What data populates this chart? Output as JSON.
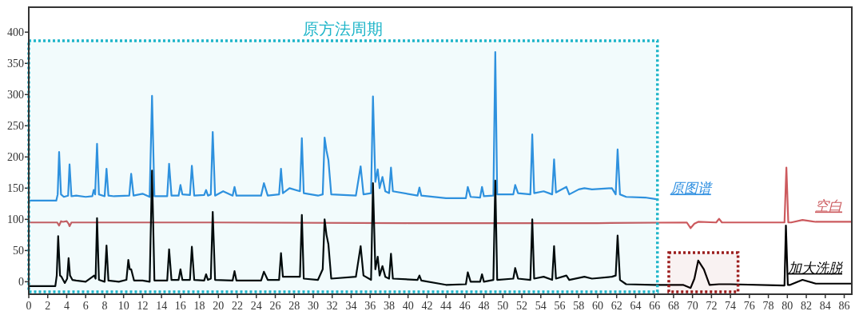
{
  "chart_data": {
    "type": "line",
    "xlim": [
      0,
      86.8
    ],
    "ylim": [
      -20,
      440
    ],
    "xticks": [
      0,
      2,
      4,
      6,
      8,
      10,
      12,
      14,
      16,
      18,
      20,
      22,
      24,
      26,
      28,
      30,
      32,
      34,
      36,
      38,
      40,
      42,
      44,
      46,
      48,
      50,
      52,
      54,
      56,
      58,
      60,
      62,
      64,
      66,
      68,
      70,
      72,
      74,
      76,
      78,
      80,
      82,
      84,
      86
    ],
    "yticks": [
      0,
      50,
      100,
      150,
      200,
      250,
      300,
      350,
      400
    ],
    "grid": false,
    "marker": "none",
    "line_style": "solid",
    "bands": [
      {
        "axis": "x",
        "from": 0,
        "to": 66.3,
        "label": "原方法周期",
        "color": "#1fb5c9"
      },
      {
        "axis": "x",
        "from": 67.5,
        "to": 74.8,
        "label": null,
        "color": "#9b1c1c"
      }
    ],
    "series": [
      {
        "name": "原图谱",
        "color": "#2f8fe0",
        "x": [
          0,
          2.9,
          3.05,
          3.2,
          3.4,
          3.7,
          4.15,
          4.3,
          4.5,
          5,
          6,
          6.7,
          6.85,
          7.0,
          7.2,
          7.4,
          8.0,
          8.2,
          8.4,
          9,
          10.6,
          10.8,
          11.05,
          12,
          12.75,
          13,
          13.25,
          14.6,
          14.8,
          15.05,
          15.8,
          16,
          16.2,
          17,
          17.2,
          17.45,
          18.5,
          18.7,
          18.9,
          19.2,
          19.4,
          19.65,
          20.5,
          21.5,
          21.7,
          21.9,
          24.5,
          24.8,
          25.2,
          26.4,
          26.6,
          26.8,
          27.5,
          28.6,
          28.8,
          29,
          30.5,
          31,
          31.2,
          31.4,
          31.6,
          31.9,
          34.5,
          35,
          35.3,
          36.1,
          36.3,
          36.55,
          36.8,
          37,
          37.3,
          37.6,
          38,
          38.2,
          38.4,
          41,
          41.2,
          41.4,
          44,
          46.1,
          46.3,
          46.6,
          47.6,
          47.8,
          48,
          49,
          49.2,
          49.4,
          51.1,
          51.3,
          51.6,
          52.9,
          53.1,
          53.3,
          54.3,
          55.2,
          55.4,
          55.6,
          56.7,
          57,
          58,
          58.6,
          59.4,
          61.5,
          61.9,
          62.1,
          62.35,
          63,
          65,
          66.3
        ],
        "values": [
          130,
          130,
          140,
          208,
          140,
          136,
          138,
          188,
          137,
          138,
          136,
          137,
          147,
          140,
          221,
          140,
          137,
          181,
          138,
          137,
          138,
          173,
          138,
          141,
          136,
          298,
          137,
          137,
          189,
          138,
          138,
          155,
          140,
          139,
          186,
          138,
          139,
          147,
          138,
          140,
          240,
          138,
          145,
          138,
          152,
          138,
          138,
          158,
          138,
          140,
          181,
          142,
          150,
          145,
          230,
          142,
          138,
          140,
          231,
          210,
          195,
          140,
          138,
          185,
          140,
          142,
          297,
          160,
          180,
          150,
          168,
          145,
          142,
          183,
          145,
          138,
          151,
          138,
          134,
          134,
          152,
          136,
          135,
          152,
          137,
          138,
          368,
          140,
          140,
          155,
          142,
          140,
          236,
          142,
          145,
          140,
          196,
          143,
          152,
          140,
          148,
          150,
          148,
          150,
          140,
          212,
          140,
          136,
          135,
          132
        ]
      },
      {
        "name": "空白",
        "color": "#cc5a5e",
        "x": [
          0,
          3.0,
          3.2,
          3.4,
          3.6,
          4.0,
          4.2,
          4.3,
          4.5,
          20,
          40,
          60,
          69.4,
          69.8,
          70.2,
          70.6,
          72.5,
          72.8,
          73.1,
          79.7,
          79.9,
          80.1,
          80.4,
          81.6,
          83,
          86.7
        ],
        "values": [
          95,
          95,
          90,
          97,
          96,
          97,
          93,
          89,
          95,
          95,
          94,
          94,
          95,
          86,
          93,
          96,
          95,
          101,
          95,
          95,
          183,
          95,
          95,
          99,
          96,
          96
        ]
      },
      {
        "name": "加大洗脱",
        "color": "#000000",
        "x": [
          0,
          2.8,
          2.95,
          3.1,
          3.3,
          3.45,
          3.8,
          4.05,
          4.2,
          4.35,
          4.6,
          5,
          6,
          6.9,
          7.05,
          7.2,
          7.4,
          8.0,
          8.2,
          8.4,
          9.5,
          10.3,
          10.5,
          10.65,
          10.8,
          11.1,
          12,
          12.75,
          13,
          13.25,
          14.6,
          14.8,
          15.05,
          15.8,
          16,
          16.2,
          17,
          17.2,
          17.45,
          18.5,
          18.7,
          18.9,
          19.2,
          19.4,
          19.65,
          21.5,
          21.7,
          21.9,
          24.5,
          24.8,
          25.2,
          26.4,
          26.6,
          26.8,
          28.6,
          28.8,
          29,
          30.5,
          31,
          31.2,
          31.4,
          31.6,
          31.9,
          34.5,
          35,
          35.3,
          36.1,
          36.3,
          36.55,
          36.8,
          37,
          37.3,
          37.6,
          38,
          38.2,
          38.4,
          41,
          41.2,
          41.4,
          44,
          46.1,
          46.3,
          46.6,
          47.6,
          47.8,
          48,
          49,
          49.2,
          49.4,
          51.1,
          51.3,
          51.6,
          52.9,
          53.1,
          53.3,
          54.3,
          55.2,
          55.4,
          55.6,
          56.7,
          57,
          58.6,
          59.4,
          61.5,
          61.9,
          62.1,
          62.35,
          63,
          66,
          69,
          69.8,
          70.2,
          70.6,
          71.2,
          71.8,
          72.8,
          74,
          79.7,
          79.85,
          80.05,
          80.3,
          81.6,
          83,
          86.7
        ],
        "values": [
          -7,
          -7,
          10,
          73,
          10,
          8,
          -2,
          5,
          38,
          10,
          3,
          2,
          0,
          10,
          5,
          102,
          3,
          0,
          58,
          2,
          0,
          3,
          35,
          20,
          20,
          2,
          2,
          0,
          178,
          2,
          2,
          52,
          3,
          3,
          20,
          3,
          3,
          56,
          3,
          2,
          12,
          3,
          5,
          112,
          3,
          2,
          17,
          2,
          2,
          16,
          3,
          3,
          46,
          8,
          8,
          107,
          5,
          3,
          20,
          100,
          75,
          60,
          5,
          8,
          57,
          10,
          3,
          158,
          20,
          40,
          10,
          25,
          8,
          5,
          45,
          5,
          3,
          10,
          2,
          -5,
          -4,
          15,
          0,
          0,
          12,
          0,
          3,
          162,
          3,
          5,
          22,
          5,
          3,
          100,
          5,
          8,
          3,
          57,
          5,
          10,
          3,
          8,
          5,
          8,
          10,
          74,
          3,
          -4,
          -5,
          -5,
          -10,
          5,
          34,
          20,
          -5,
          -4,
          -4,
          -6,
          90,
          -5,
          -5,
          3,
          -3,
          -3
        ]
      }
    ]
  }
}
